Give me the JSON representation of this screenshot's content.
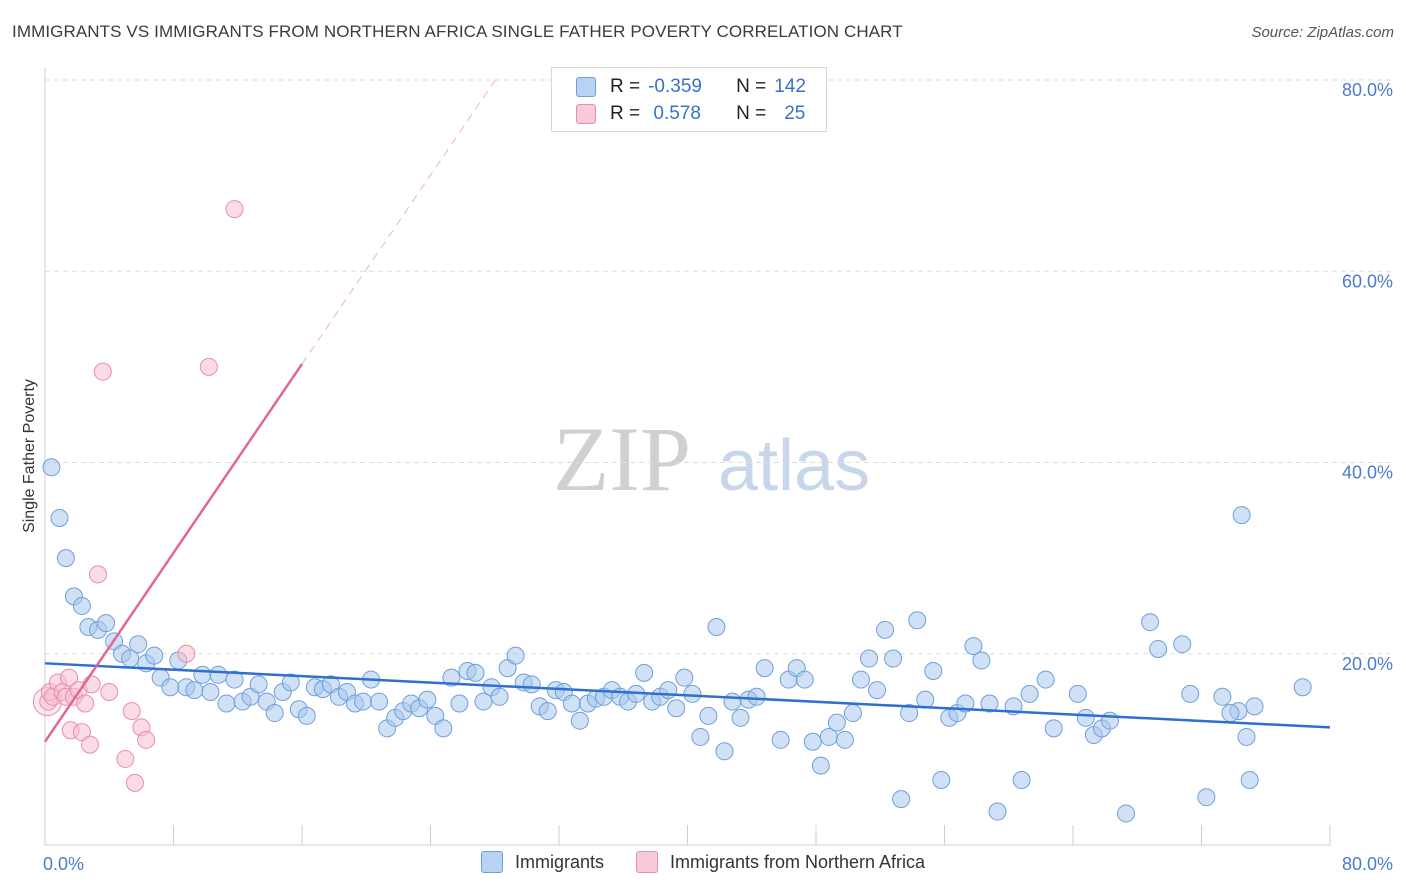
{
  "header": {
    "title": "IMMIGRANTS VS IMMIGRANTS FROM NORTHERN AFRICA SINGLE FATHER POVERTY CORRELATION CHART",
    "source": "Source: ZipAtlas.com"
  },
  "watermark": {
    "zip": "ZIP",
    "atlas": "atlas"
  },
  "legend": {
    "rows": [
      {
        "r_label": "R =",
        "r_value": "-0.359",
        "n_label": "N =",
        "n_value": "142"
      },
      {
        "r_label": "R =",
        "r_value": " 0.578",
        "n_label": "N =",
        "n_value": "25"
      }
    ]
  },
  "bottom_legend": {
    "series1": "Immigrants",
    "series2": "Immigrants from Northern Africa"
  },
  "colors": {
    "blue_fill": "#a9c8ef",
    "blue_stroke": "#6f9fdb",
    "blue_line": "#2f6fd0",
    "pink_fill": "#f7bfd0",
    "pink_stroke": "#e68fab",
    "pink_line": "#e06890",
    "tick_text": "#4a7ccc",
    "grid": "#dddddd"
  },
  "chart_data": {
    "type": "scatter",
    "ylabel": "Single Father Poverty",
    "xlim": [
      0,
      80
    ],
    "ylim": [
      0,
      80
    ],
    "x_tick_labels": [
      "0.0%",
      "80.0%"
    ],
    "y_ticks": [
      20,
      40,
      60,
      80
    ],
    "y_tick_labels": [
      "20.0%",
      "40.0%",
      "60.0%",
      "80.0%"
    ],
    "grid": true,
    "series": [
      {
        "name": "Immigrants",
        "r": -0.359,
        "n": 142,
        "trend": {
          "x": [
            0,
            80
          ],
          "y": [
            19.0,
            12.3
          ]
        },
        "points": [
          [
            0.4,
            39.5
          ],
          [
            0.9,
            34.2
          ],
          [
            1.3,
            30.0
          ],
          [
            1.8,
            26.0
          ],
          [
            2.3,
            25.0
          ],
          [
            2.7,
            22.8
          ],
          [
            3.3,
            22.5
          ],
          [
            3.8,
            23.2
          ],
          [
            4.3,
            21.3
          ],
          [
            4.8,
            20.0
          ],
          [
            5.3,
            19.5
          ],
          [
            5.8,
            21.0
          ],
          [
            6.3,
            19.0
          ],
          [
            6.8,
            19.8
          ],
          [
            7.2,
            17.5
          ],
          [
            7.8,
            16.5
          ],
          [
            8.3,
            19.3
          ],
          [
            8.8,
            16.5
          ],
          [
            9.3,
            16.2
          ],
          [
            9.8,
            17.8
          ],
          [
            10.3,
            16.0
          ],
          [
            10.8,
            17.8
          ],
          [
            11.3,
            14.8
          ],
          [
            11.8,
            17.3
          ],
          [
            12.3,
            15.0
          ],
          [
            12.8,
            15.5
          ],
          [
            13.3,
            16.8
          ],
          [
            13.8,
            15.0
          ],
          [
            14.3,
            13.8
          ],
          [
            14.8,
            16.0
          ],
          [
            15.3,
            17.0
          ],
          [
            15.8,
            14.2
          ],
          [
            16.3,
            13.5
          ],
          [
            16.8,
            16.5
          ],
          [
            17.3,
            16.3
          ],
          [
            17.8,
            16.8
          ],
          [
            18.3,
            15.5
          ],
          [
            18.8,
            16.0
          ],
          [
            19.3,
            14.8
          ],
          [
            19.8,
            15.0
          ],
          [
            20.3,
            17.3
          ],
          [
            20.8,
            15.0
          ],
          [
            21.3,
            12.2
          ],
          [
            21.8,
            13.3
          ],
          [
            22.3,
            14.0
          ],
          [
            22.8,
            14.8
          ],
          [
            23.3,
            14.3
          ],
          [
            23.8,
            15.2
          ],
          [
            24.3,
            13.5
          ],
          [
            24.8,
            12.2
          ],
          [
            25.3,
            17.5
          ],
          [
            25.8,
            14.8
          ],
          [
            26.3,
            18.2
          ],
          [
            26.8,
            18.0
          ],
          [
            27.3,
            15.0
          ],
          [
            27.8,
            16.5
          ],
          [
            28.3,
            15.5
          ],
          [
            28.8,
            18.5
          ],
          [
            29.3,
            19.8
          ],
          [
            29.8,
            17.0
          ],
          [
            30.3,
            16.8
          ],
          [
            30.8,
            14.5
          ],
          [
            31.3,
            14.0
          ],
          [
            31.8,
            16.2
          ],
          [
            32.3,
            16.0
          ],
          [
            32.8,
            14.8
          ],
          [
            33.3,
            13.0
          ],
          [
            33.8,
            14.8
          ],
          [
            34.3,
            15.3
          ],
          [
            34.8,
            15.5
          ],
          [
            35.3,
            16.2
          ],
          [
            35.8,
            15.5
          ],
          [
            36.3,
            15.0
          ],
          [
            36.8,
            15.8
          ],
          [
            37.3,
            18.0
          ],
          [
            37.8,
            15.0
          ],
          [
            38.3,
            15.5
          ],
          [
            38.8,
            16.2
          ],
          [
            39.3,
            14.3
          ],
          [
            39.8,
            17.5
          ],
          [
            40.3,
            15.8
          ],
          [
            40.8,
            11.3
          ],
          [
            41.3,
            13.5
          ],
          [
            41.8,
            22.8
          ],
          [
            42.3,
            9.8
          ],
          [
            42.8,
            15.0
          ],
          [
            43.3,
            13.3
          ],
          [
            43.8,
            15.2
          ],
          [
            44.3,
            15.5
          ],
          [
            44.8,
            18.5
          ],
          [
            45.8,
            11.0
          ],
          [
            46.3,
            17.3
          ],
          [
            46.8,
            18.5
          ],
          [
            47.3,
            17.3
          ],
          [
            47.8,
            10.8
          ],
          [
            48.3,
            8.3
          ],
          [
            48.8,
            11.3
          ],
          [
            49.3,
            12.8
          ],
          [
            49.8,
            11.0
          ],
          [
            50.3,
            13.8
          ],
          [
            50.8,
            17.3
          ],
          [
            51.3,
            19.5
          ],
          [
            51.8,
            16.2
          ],
          [
            52.3,
            22.5
          ],
          [
            52.8,
            19.5
          ],
          [
            53.3,
            4.8
          ],
          [
            53.8,
            13.8
          ],
          [
            54.3,
            23.5
          ],
          [
            54.8,
            15.2
          ],
          [
            55.3,
            18.2
          ],
          [
            55.8,
            6.8
          ],
          [
            56.3,
            13.3
          ],
          [
            56.8,
            13.8
          ],
          [
            57.3,
            14.8
          ],
          [
            57.8,
            20.8
          ],
          [
            58.3,
            19.3
          ],
          [
            58.8,
            14.8
          ],
          [
            59.3,
            3.5
          ],
          [
            60.3,
            14.5
          ],
          [
            60.8,
            6.8
          ],
          [
            61.3,
            15.8
          ],
          [
            62.3,
            17.3
          ],
          [
            62.8,
            12.2
          ],
          [
            64.3,
            15.8
          ],
          [
            64.8,
            13.3
          ],
          [
            65.3,
            11.5
          ],
          [
            65.8,
            12.2
          ],
          [
            66.3,
            13.0
          ],
          [
            67.3,
            3.3
          ],
          [
            68.8,
            23.3
          ],
          [
            69.3,
            20.5
          ],
          [
            70.8,
            21.0
          ],
          [
            71.3,
            15.8
          ],
          [
            72.3,
            5.0
          ],
          [
            73.3,
            15.5
          ],
          [
            74.3,
            14.0
          ],
          [
            74.8,
            11.3
          ],
          [
            74.5,
            34.5
          ],
          [
            75.3,
            14.5
          ],
          [
            75.0,
            6.8
          ],
          [
            78.3,
            16.5
          ],
          [
            73.8,
            13.8
          ]
        ]
      },
      {
        "name": "Immigrants from Northern Africa",
        "r": 0.578,
        "n": 25,
        "trend": {
          "x": [
            0,
            16
          ],
          "y": [
            10.8,
            50.3
          ]
        },
        "points": [
          [
            0.2,
            15.0
          ],
          [
            0.3,
            16.0
          ],
          [
            0.5,
            15.5
          ],
          [
            0.8,
            17.0
          ],
          [
            1.1,
            16.0
          ],
          [
            1.3,
            15.5
          ],
          [
            1.5,
            17.5
          ],
          [
            1.6,
            12.0
          ],
          [
            1.8,
            15.5
          ],
          [
            2.1,
            16.2
          ],
          [
            2.3,
            11.8
          ],
          [
            2.5,
            14.8
          ],
          [
            2.8,
            10.5
          ],
          [
            2.9,
            16.8
          ],
          [
            3.3,
            28.3
          ],
          [
            3.6,
            49.5
          ],
          [
            4.0,
            16.0
          ],
          [
            5.0,
            9.0
          ],
          [
            5.4,
            14.0
          ],
          [
            5.6,
            6.5
          ],
          [
            6.0,
            12.3
          ],
          [
            6.3,
            11.0
          ],
          [
            8.8,
            20.0
          ],
          [
            10.2,
            50.0
          ],
          [
            11.8,
            66.5
          ]
        ]
      }
    ]
  }
}
